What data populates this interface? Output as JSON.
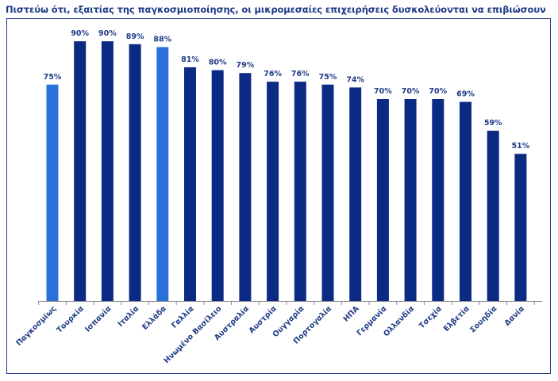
{
  "chart_data": {
    "type": "bar",
    "title": "Πιστεύω ότι, εξαιτίας της παγκοσμιοποίησης, οι μικρομεσαίες επιχειρήσεις δυσκολεύονται να επιβιώσουν",
    "xlabel": "",
    "ylabel": "",
    "ylim": [
      0,
      100
    ],
    "value_suffix": "%",
    "colors": {
      "highlight": "#2a72d9",
      "default": "#0b2a84",
      "axis": "#8c8c8c",
      "text": "#1f3a86"
    },
    "categories": [
      "Παγκοσμίως",
      "Τουρκία",
      "Ισπανία",
      "Ιταλία",
      "Ελλάδα",
      "Γαλλία",
      "Ηνωμένο Βασίλειο",
      "Αυστραλία",
      "Αυστρία",
      "Ουγγαρία",
      "Πορτογαλία",
      "ΗΠΑ",
      "Γερμανία",
      "Ολλανδία",
      "Τσεχία",
      "Ελβετία",
      "Σουηδία",
      "Δανία"
    ],
    "values": [
      75,
      90,
      90,
      89,
      88,
      81,
      80,
      79,
      76,
      76,
      75,
      74,
      70,
      70,
      70,
      69,
      59,
      51
    ],
    "highlighted": [
      true,
      false,
      false,
      false,
      true,
      false,
      false,
      false,
      false,
      false,
      false,
      false,
      false,
      false,
      false,
      false,
      false,
      false
    ]
  }
}
